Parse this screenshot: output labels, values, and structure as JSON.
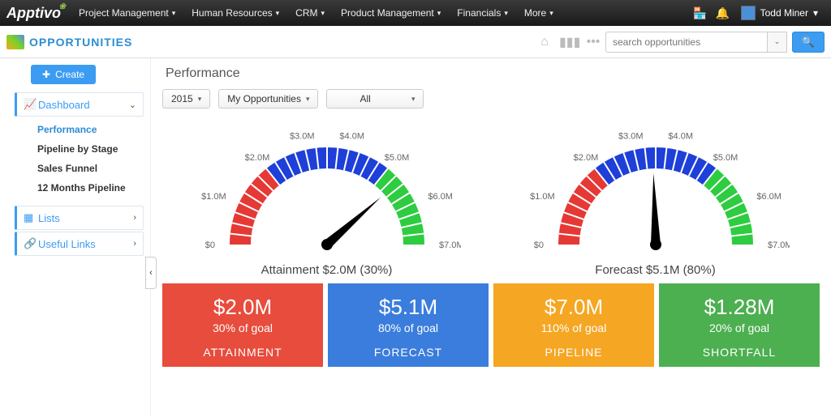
{
  "topnav": {
    "logo": "Apptivo",
    "menus": [
      "Project Management",
      "Human Resources",
      "CRM",
      "Product Management",
      "Financials",
      "More"
    ],
    "user_name": "Todd Miner"
  },
  "subheader": {
    "title": "OPPORTUNITIES",
    "search_placeholder": "search opportunities"
  },
  "sidebar": {
    "create_label": "Create",
    "dashboard": {
      "label": "Dashboard",
      "items": [
        "Performance",
        "Pipeline by Stage",
        "Sales Funnel",
        "12 Months Pipeline"
      ],
      "active_index": 0
    },
    "lists_label": "Lists",
    "links_label": "Useful Links"
  },
  "main": {
    "title": "Performance",
    "filters": {
      "year": "2015",
      "scope": "My Opportunities",
      "range": "All"
    },
    "gauge_ticks": [
      "$0",
      "$1.0M",
      "$2.0M",
      "$3.0M",
      "$4.0M",
      "$5.0M",
      "$6.0M",
      "$7.0M"
    ],
    "gauges": [
      {
        "caption": "Attainment $2.0M (30%)",
        "needle_angle_deg": 77,
        "segments": [
          {
            "start": 0,
            "end": 28.6,
            "color": "#e53935"
          },
          {
            "start": 28.6,
            "end": 71.4,
            "color": "#1e3fd8"
          },
          {
            "start": 71.4,
            "end": 100,
            "color": "#2ecc40"
          }
        ]
      },
      {
        "caption": "Forecast $5.1M (80%)",
        "needle_angle_deg": 49,
        "segments": [
          {
            "start": 0,
            "end": 28.6,
            "color": "#e53935"
          },
          {
            "start": 28.6,
            "end": 71.4,
            "color": "#1e3fd8"
          },
          {
            "start": 71.4,
            "end": 100,
            "color": "#2ecc40"
          }
        ]
      }
    ],
    "cards": [
      {
        "value": "$2.0M",
        "pct": "30% of goal",
        "title": "ATTAINMENT",
        "color": "#e74c3c"
      },
      {
        "value": "$5.1M",
        "pct": "80% of goal",
        "title": "FORECAST",
        "color": "#3b7ddd"
      },
      {
        "value": "$7.0M",
        "pct": "110% of goal",
        "title": "PIPELINE",
        "color": "#f5a623"
      },
      {
        "value": "$1.28M",
        "pct": "20% of goal",
        "title": "SHORTFALL",
        "color": "#4caf50"
      }
    ],
    "gauge_style": {
      "outer_radius": 120,
      "inner_radius": 94,
      "tick_color": "#ffffff",
      "needle_color": "#000000",
      "bg": "#ffffff"
    }
  }
}
